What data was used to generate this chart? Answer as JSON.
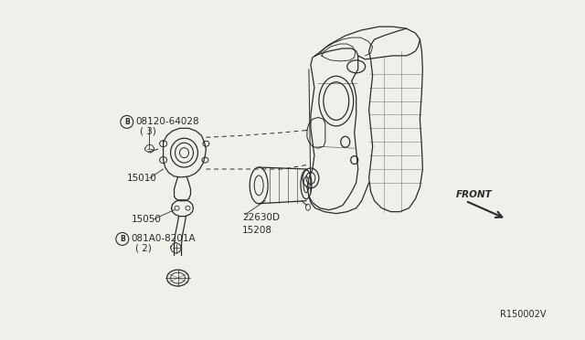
{
  "bg_color": "#f0f0eb",
  "line_color": "#2a2a2a",
  "fig_width": 6.4,
  "fig_height": 3.72,
  "dpi": 100,
  "title_ref": "R150002V",
  "labels": {
    "bolt1_circle": "B",
    "bolt1_text": "08120-64028",
    "bolt1_qty": "( 3)",
    "part15010": "15010",
    "part15050": "15050",
    "bolt2_circle": "B",
    "bolt2_text": "081A0-8201A",
    "bolt2_qty": "( 2)",
    "part226300": "22630D",
    "part15208": "15208",
    "front": "FRONT"
  }
}
